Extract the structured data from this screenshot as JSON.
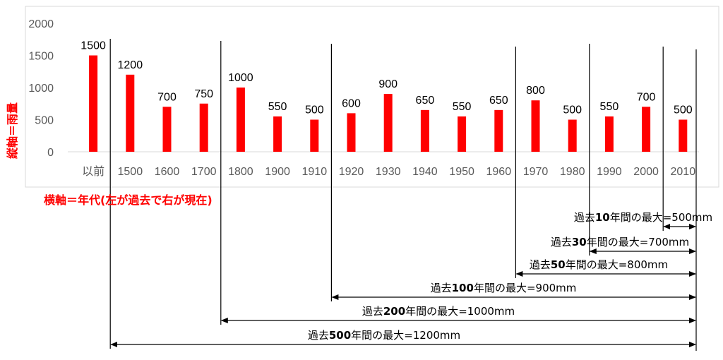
{
  "chart_data": {
    "type": "bar",
    "categories": [
      "以前",
      "1500",
      "1600",
      "1700",
      "1800",
      "1900",
      "1910",
      "1920",
      "1930",
      "1940",
      "1950",
      "1960",
      "1970",
      "1980",
      "1990",
      "2000",
      "2010"
    ],
    "values": [
      1500,
      1200,
      700,
      750,
      1000,
      550,
      500,
      600,
      900,
      650,
      550,
      650,
      800,
      500,
      550,
      700,
      500
    ],
    "data_labels": [
      "1500",
      "1200",
      "700",
      "750",
      "1000",
      "550",
      "500",
      "600",
      "900",
      "650",
      "550",
      "650",
      "800",
      "500",
      "550",
      "700",
      "500"
    ],
    "ylabel": "縦軸＝雨量",
    "xlabel": "横軸＝年代(左が過去で右が現在)",
    "ylim": [
      0,
      2000
    ],
    "yticks": [
      "0",
      "500",
      "1000",
      "1500",
      "2000"
    ],
    "bar_color": "#ff0000",
    "axis_title_color": "#ff0000",
    "grid": false,
    "legend": "none",
    "annotations": [
      {
        "pre": "過去",
        "num": "10",
        "post": "年間の最大",
        "value": "=500mm",
        "from_category": "2010"
      },
      {
        "pre": "過去",
        "num": "30",
        "post": "年間の最大",
        "value": "=700mm",
        "from_category": "1990"
      },
      {
        "pre": "過去",
        "num": "50",
        "post": "年間の最大",
        "value": "=800mm",
        "from_category": "1970"
      },
      {
        "pre": "過去",
        "num": "100",
        "post": "年間の最大",
        "value": "=900mm",
        "from_category": "1920"
      },
      {
        "pre": "過去",
        "num": "200",
        "post": "年間の最大",
        "value": "=1000mm",
        "from_category": "1800"
      },
      {
        "pre": "過去",
        "num": "500",
        "post": "年間の最大",
        "value": "=1200mm",
        "from_category": "1500"
      }
    ]
  }
}
